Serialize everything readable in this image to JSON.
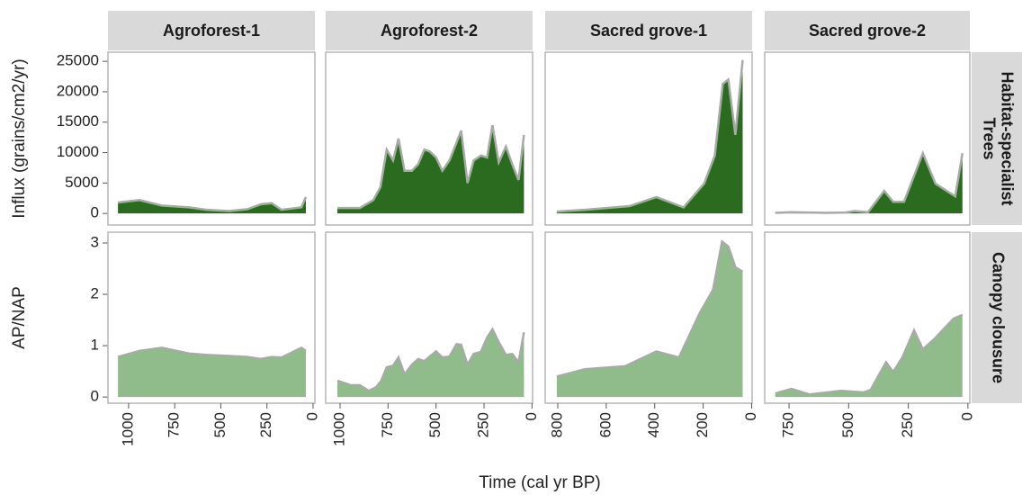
{
  "chart_data": {
    "type": "area",
    "xlabel": "Time (cal yr BP)",
    "line_color": "#a9a9a9",
    "columns": [
      {
        "title": "Agroforest-1",
        "xlim": [
          1112,
          -10
        ],
        "xticks": [
          1000,
          750,
          500,
          250,
          0
        ]
      },
      {
        "title": "Agroforest-2",
        "xlim": [
          1075,
          -3
        ],
        "xticks": [
          1000,
          750,
          500,
          250,
          0
        ]
      },
      {
        "title": "Sacred grove-1",
        "xlim": [
          852,
          -2
        ],
        "xticks": [
          800,
          600,
          400,
          200,
          0
        ]
      },
      {
        "title": "Sacred grove-2",
        "xlim": [
          852,
          -8
        ],
        "xticks": [
          750,
          500,
          250,
          0
        ]
      }
    ],
    "rows": [
      {
        "strip": [
          "Habitat-specialist",
          "Trees"
        ],
        "ylabel": "Influx (grains/cm2/yr)",
        "color": "#2a6b1f",
        "ylim": [
          -1900,
          26500
        ],
        "yticks": [
          0,
          5000,
          10000,
          15000,
          20000,
          25000
        ],
        "panels": [
          {
            "x": [
              1058,
              941,
              820,
              673,
              576,
              454,
              356,
              283,
              224,
              171,
              63,
              39
            ],
            "values": [
              1800,
              2200,
              1300,
              1000,
              600,
              400,
              700,
              1500,
              1700,
              600,
              1000,
              2700
            ]
          },
          {
            "x": [
              1014,
              897,
              827,
              790,
              757,
              724,
              696,
              664,
              626,
              593,
              561,
              533,
              500,
              467,
              430,
              369,
              336,
              304,
              266,
              234,
              206,
              173,
              136,
              103,
              70,
              42
            ],
            "values": [
              900,
              900,
              2200,
              4300,
              10500,
              8700,
              12300,
              7000,
              7000,
              8100,
              10500,
              10200,
              9200,
              7000,
              8700,
              13600,
              5000,
              8700,
              9500,
              9200,
              14500,
              8400,
              11000,
              8100,
              5500,
              12900
            ]
          },
          {
            "x": [
              804,
              689,
              504,
              393,
              281,
              196,
              152,
              119,
              96,
              67,
              37
            ],
            "values": [
              300,
              600,
              1200,
              2700,
              1000,
              4900,
              9500,
              21300,
              22000,
              12900,
              25200
            ]
          },
          {
            "x": [
              808,
              740,
              664,
              589,
              513,
              475,
              419,
              351,
              313,
              268,
              189,
              136,
              53,
              23
            ],
            "values": [
              100,
              200,
              150,
              100,
              150,
              400,
              200,
              3700,
              1900,
              1900,
              9900,
              4900,
              2800,
              9900
            ]
          }
        ]
      },
      {
        "strip": [
          "Canopy clousure"
        ],
        "ylabel": "AP/NAP",
        "color": "#8fbc8a",
        "ylim": [
          -0.12,
          3.21
        ],
        "yticks": [
          0,
          1,
          2,
          3
        ],
        "panels": [
          {
            "x": [
              1058,
              941,
              820,
              673,
              576,
              454,
              356,
              283,
              224,
              171,
              63,
              39
            ],
            "values": [
              0.78,
              0.9,
              0.96,
              0.85,
              0.82,
              0.8,
              0.78,
              0.74,
              0.78,
              0.77,
              0.96,
              0.9
            ]
          },
          {
            "x": [
              1014,
              944,
              897,
              850,
              813,
              785,
              757,
              724,
              696,
              664,
              626,
              593,
              561,
              533,
              500,
              467,
              430,
              393,
              369,
              336,
              304,
              266,
              234,
              206,
              173,
              136,
              103,
              70,
              42
            ],
            "values": [
              0.32,
              0.23,
              0.23,
              0.12,
              0.19,
              0.32,
              0.58,
              0.61,
              0.77,
              0.44,
              0.63,
              0.74,
              0.7,
              0.79,
              0.89,
              0.77,
              0.79,
              1.03,
              1.02,
              0.63,
              0.84,
              0.88,
              1.16,
              1.32,
              1.07,
              0.82,
              0.84,
              0.68,
              1.26
            ]
          },
          {
            "x": [
              804,
              689,
              522,
              393,
              300,
              215,
              159,
              122,
              96,
              67,
              37
            ],
            "values": [
              0.4,
              0.54,
              0.6,
              0.89,
              0.77,
              1.63,
              2.09,
              3.03,
              2.93,
              2.53,
              2.44
            ]
          },
          {
            "x": [
              808,
              740,
              664,
              532,
              438,
              408,
              343,
              313,
              275,
              226,
              189,
              143,
              60,
              23
            ],
            "values": [
              0.07,
              0.16,
              0.05,
              0.12,
              0.09,
              0.14,
              0.68,
              0.49,
              0.77,
              1.3,
              0.93,
              1.12,
              1.53,
              1.6
            ]
          }
        ]
      }
    ]
  }
}
